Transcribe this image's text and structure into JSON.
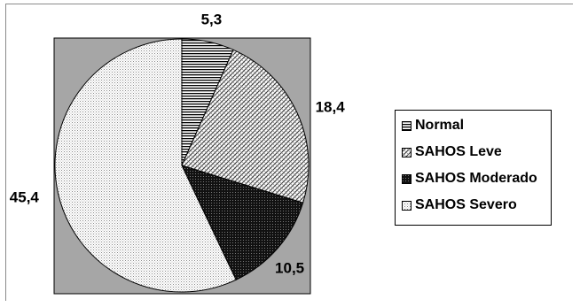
{
  "chart_data": {
    "type": "pie",
    "title": "",
    "categories": [
      "Normal",
      "SAHOS Leve",
      "SAHOS Moderado",
      "SAHOS Severo"
    ],
    "values": [
      5.3,
      18.4,
      10.5,
      45.4
    ],
    "data_labels": [
      "5,3",
      "18,4",
      "10,5",
      "45,4"
    ],
    "start_angle_deg": 0,
    "direction": "clockwise",
    "legend": "right",
    "plot_area_color": "#a6a6a6",
    "patterns": [
      "horizontal-lines",
      "wide-diagonal-hatch",
      "dark-dots",
      "light-dots"
    ]
  }
}
